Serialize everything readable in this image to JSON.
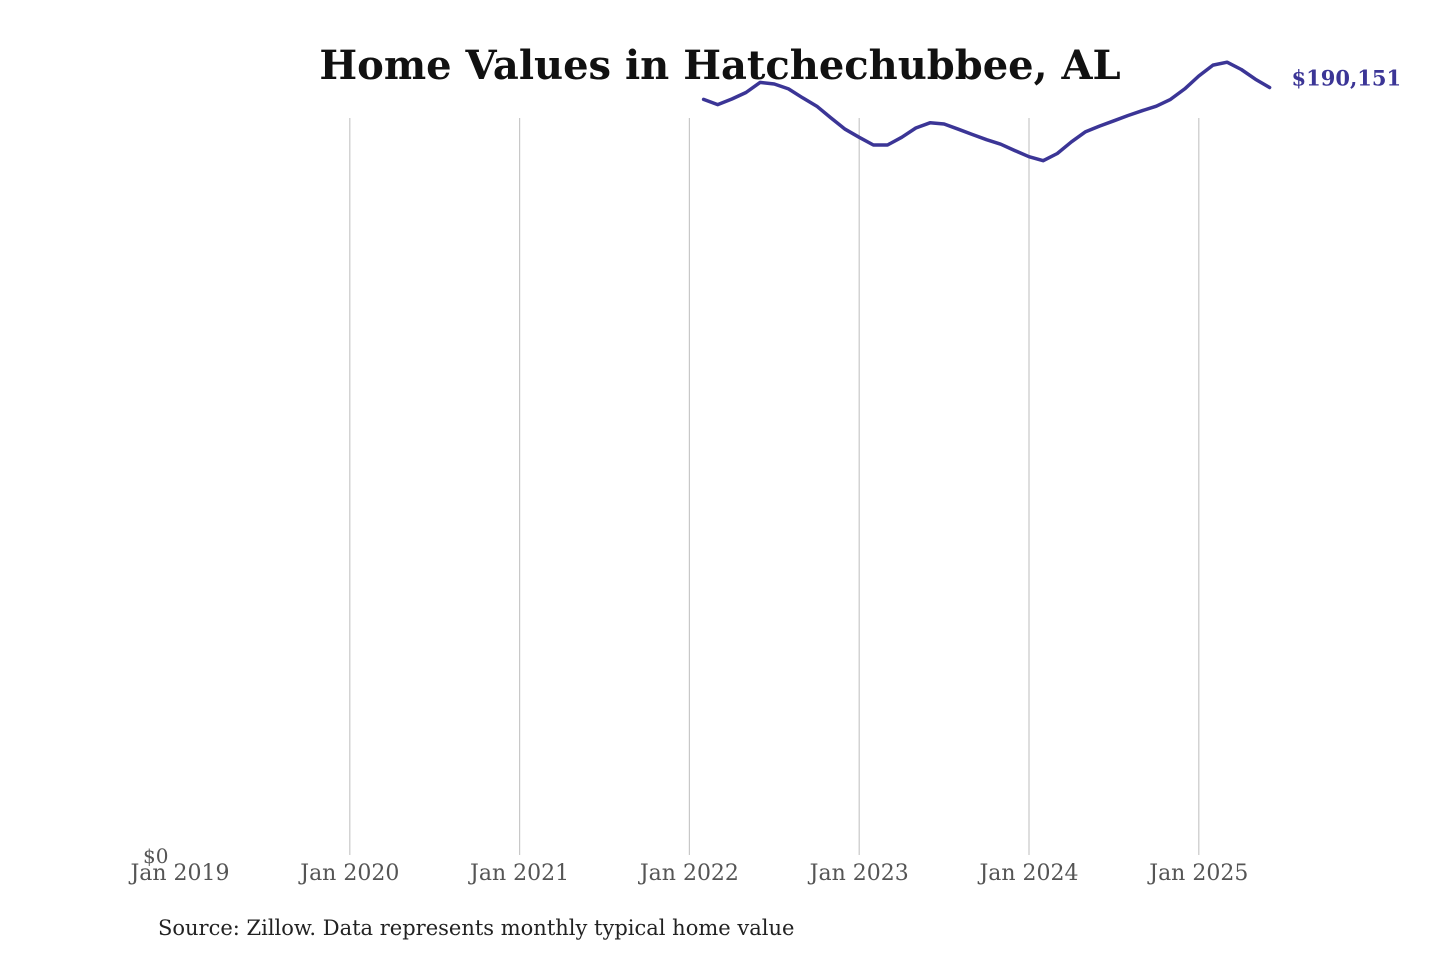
{
  "chart_data": {
    "type": "line",
    "title": "Home Values in Hatchechubbee, AL",
    "xlabel": "",
    "ylabel": "",
    "x_ticks": [
      "Jan 2019",
      "Jan 2020",
      "Jan 2021",
      "Jan 2022",
      "Jan 2023",
      "Jan 2024",
      "Jan 2025"
    ],
    "y_tick_label": "$0",
    "ylim": [
      0,
      192000
    ],
    "x_range": [
      "2019-01",
      "2025-08"
    ],
    "grid": "vertical",
    "line_color": "#3b3596",
    "series": [
      {
        "x": [
          "2022-02",
          "2022-03",
          "2022-04",
          "2022-05",
          "2022-06",
          "2022-07",
          "2022-08",
          "2022-09",
          "2022-10",
          "2022-11",
          "2022-12",
          "2023-01",
          "2023-02",
          "2023-03",
          "2023-04",
          "2023-05",
          "2023-06",
          "2023-07",
          "2023-08",
          "2023-09",
          "2023-10",
          "2023-11",
          "2023-12",
          "2024-01",
          "2024-02",
          "2024-03",
          "2024-04",
          "2024-05",
          "2024-06",
          "2024-07",
          "2024-08",
          "2024-09",
          "2024-10",
          "2024-11",
          "2024-12",
          "2025-01",
          "2025-02",
          "2025-03",
          "2025-04",
          "2025-05",
          "2025-06"
        ],
        "values": [
          187200,
          185900,
          187300,
          188900,
          191400,
          191000,
          189800,
          187600,
          185500,
          182600,
          179800,
          177800,
          175900,
          175900,
          177800,
          180100,
          181400,
          181100,
          179800,
          178500,
          177200,
          176100,
          174500,
          173000,
          172000,
          173800,
          176700,
          179200,
          180600,
          181900,
          183200,
          184400,
          185500,
          187200,
          189800,
          193000,
          195700,
          196400,
          194600,
          192200,
          190151
        ]
      }
    ],
    "end_label": "$190,151",
    "source": "Source: Zillow. Data represents monthly typical home value"
  }
}
